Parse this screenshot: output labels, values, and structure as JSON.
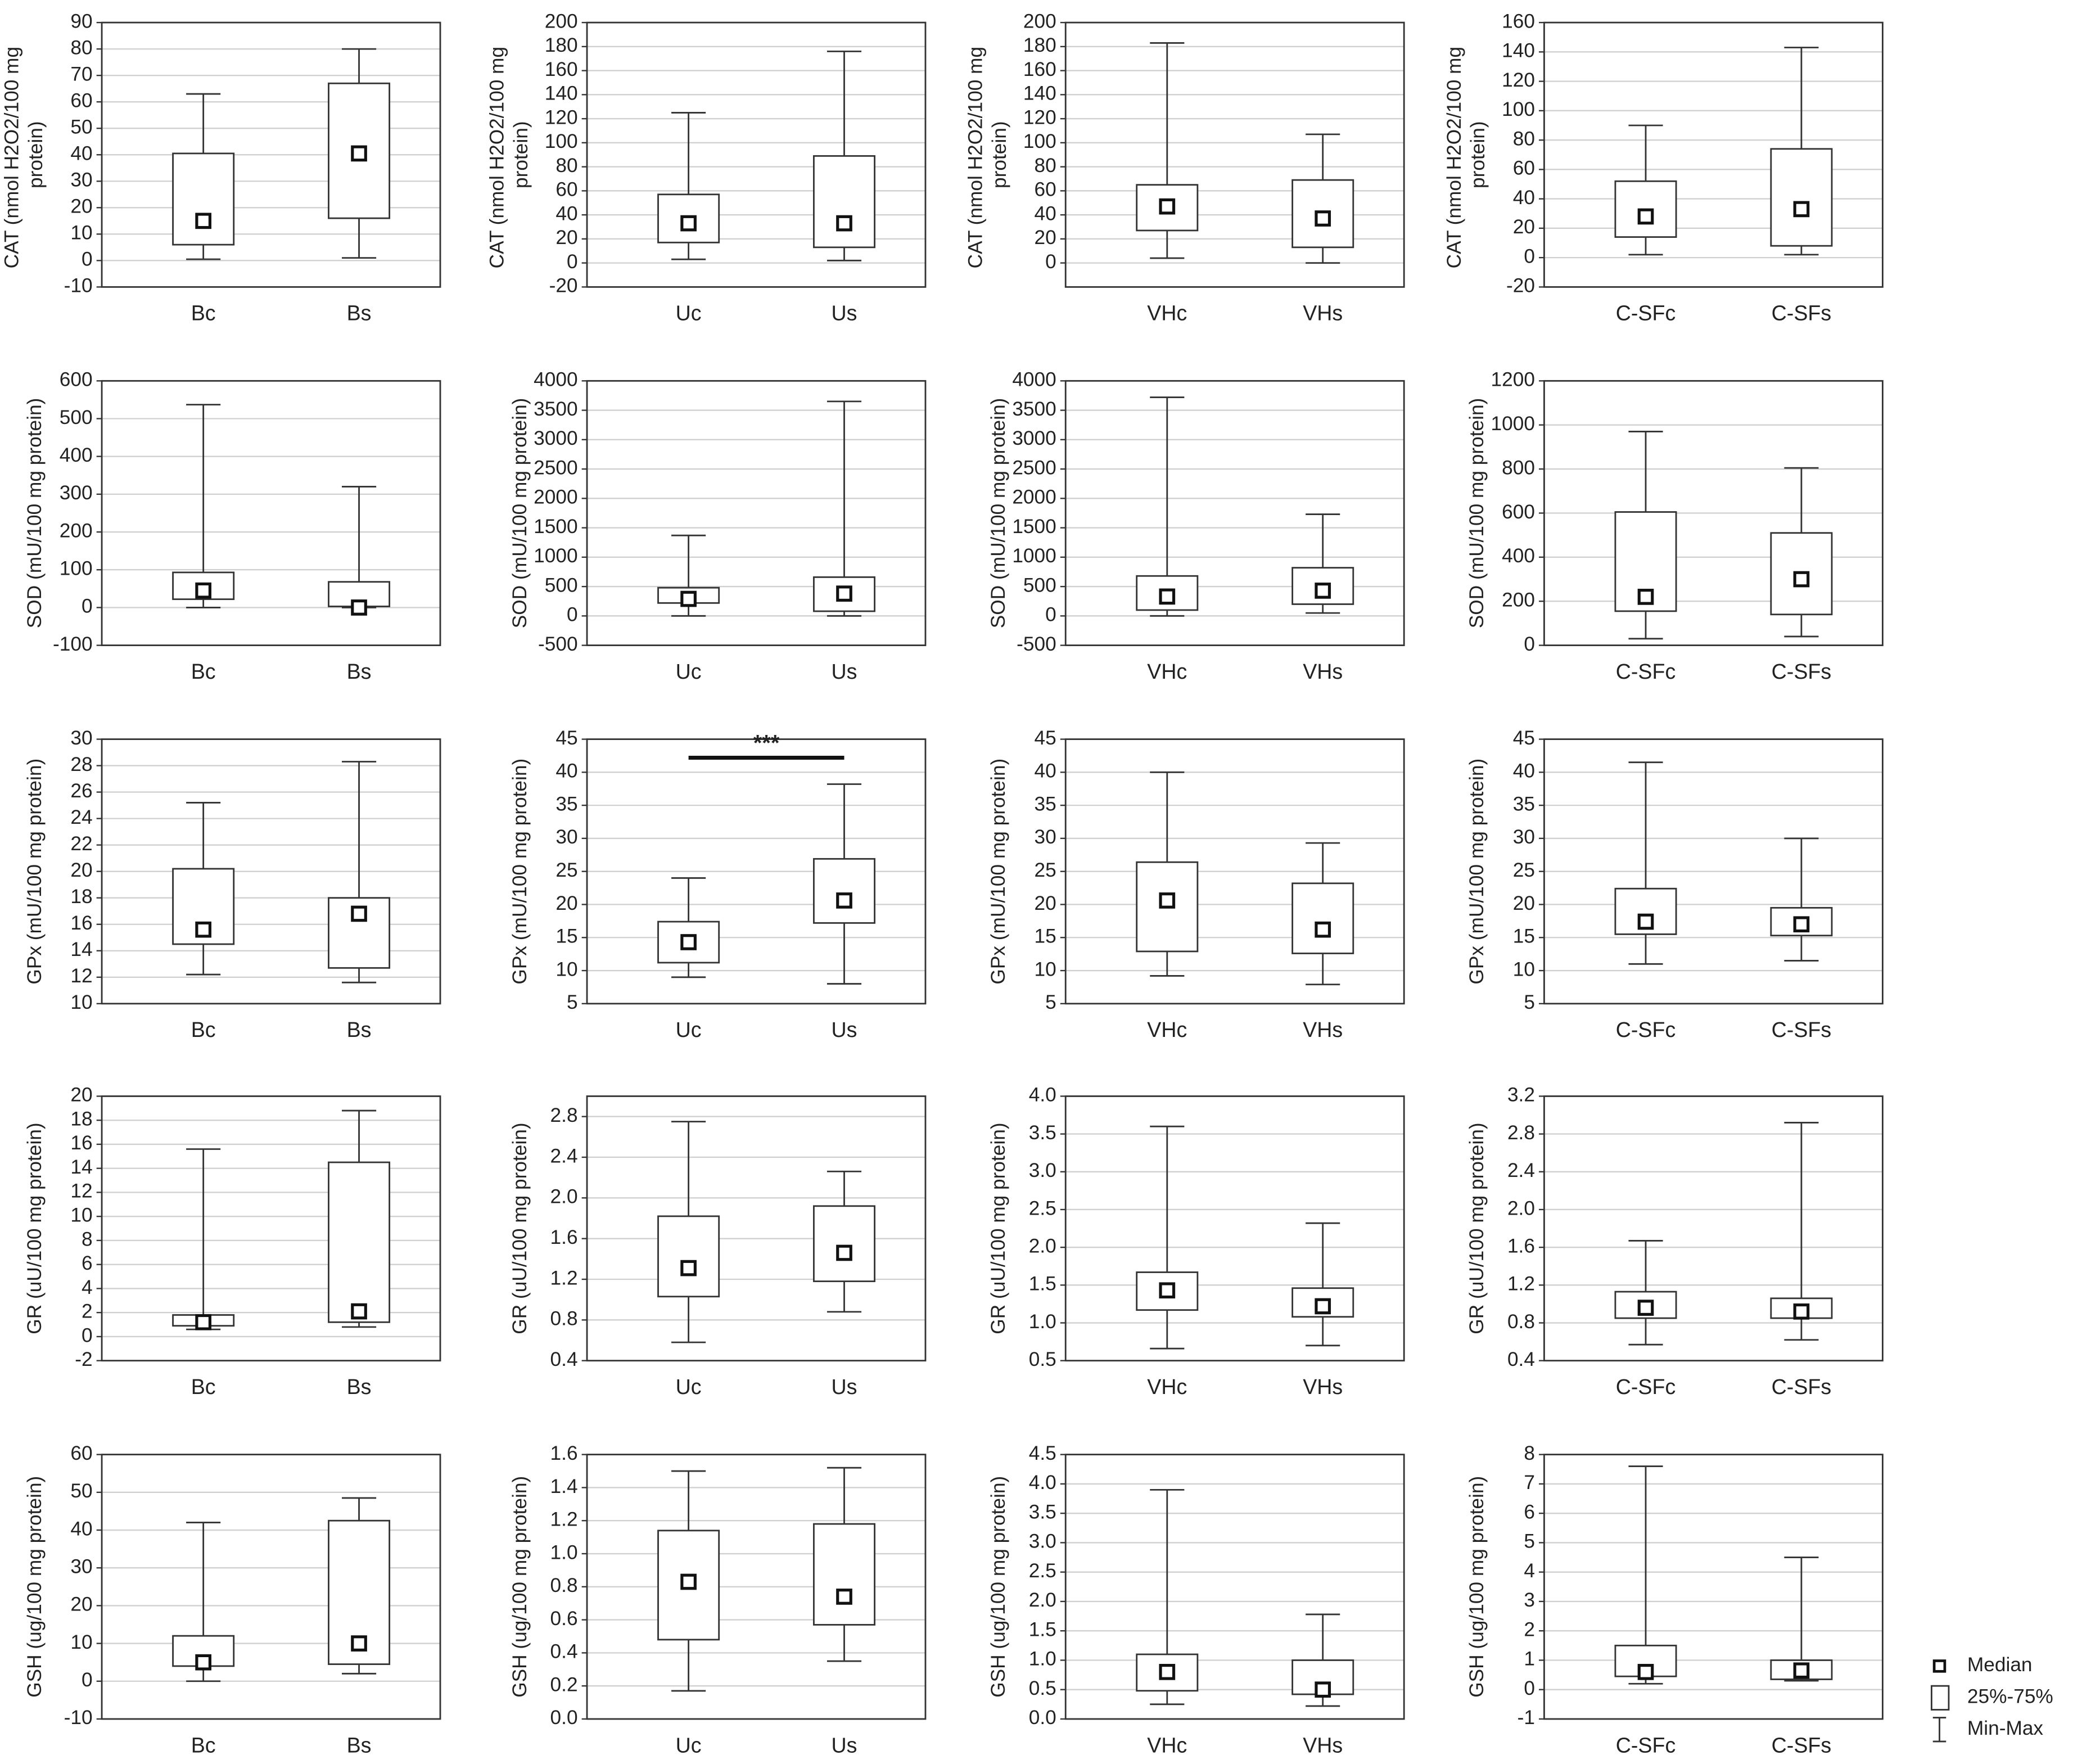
{
  "chart_data": [
    {
      "type": "box",
      "ylabel": "CAT (nmol H2O2/100 mg protein)",
      "categories": [
        "Bc",
        "Bs"
      ],
      "min": [
        0.5,
        1
      ],
      "q1": [
        6,
        16
      ],
      "median": [
        15,
        40.5
      ],
      "q3": [
        40.5,
        67
      ],
      "max": [
        63,
        80
      ],
      "ylim": [
        -10,
        90
      ],
      "yticks": [
        -10,
        0,
        10,
        20,
        30,
        40,
        50,
        60,
        70,
        80,
        90
      ],
      "grid": true
    },
    {
      "type": "box",
      "ylabel": "CAT (nmol H2O2/100 mg protein)",
      "categories": [
        "Uc",
        "Us"
      ],
      "min": [
        3,
        2
      ],
      "q1": [
        17,
        13
      ],
      "median": [
        33,
        33
      ],
      "q3": [
        57,
        89
      ],
      "max": [
        125,
        176
      ],
      "ylim": [
        -20,
        200
      ],
      "yticks": [
        -20,
        0,
        20,
        40,
        60,
        80,
        100,
        120,
        140,
        160,
        180,
        200
      ],
      "grid": true
    },
    {
      "type": "box",
      "ylabel": "CAT (nmol H2O2/100 mg protein)",
      "categories": [
        "VHc",
        "VHs"
      ],
      "min": [
        4,
        0
      ],
      "q1": [
        27,
        13
      ],
      "median": [
        47,
        37
      ],
      "q3": [
        65,
        69
      ],
      "max": [
        183,
        107
      ],
      "ylim": [
        -20,
        200
      ],
      "yticks": [
        0,
        20,
        40,
        60,
        80,
        100,
        120,
        140,
        160,
        180,
        200
      ],
      "grid": true
    },
    {
      "type": "box",
      "ylabel": "CAT (nmol H2O2/100 mg protein)",
      "categories": [
        "C-SFc",
        "C-SFs"
      ],
      "min": [
        2,
        2
      ],
      "q1": [
        14,
        8
      ],
      "median": [
        28,
        33
      ],
      "q3": [
        52,
        74
      ],
      "max": [
        90,
        143
      ],
      "ylim": [
        -20,
        160
      ],
      "yticks": [
        -20,
        0,
        20,
        40,
        60,
        80,
        100,
        120,
        140,
        160
      ],
      "grid": true
    },
    {
      "type": "box",
      "ylabel": "SOD (mU/100 mg protein)",
      "categories": [
        "Bc",
        "Bs"
      ],
      "min": [
        0,
        0
      ],
      "q1": [
        22,
        3
      ],
      "median": [
        45,
        0
      ],
      "q3": [
        93,
        68
      ],
      "max": [
        537,
        320
      ],
      "ylim": [
        -100,
        600
      ],
      "yticks": [
        -100,
        0,
        100,
        200,
        300,
        400,
        500,
        600
      ],
      "grid": true
    },
    {
      "type": "box",
      "ylabel": "SOD (mU/100 mg protein)",
      "categories": [
        "Uc",
        "Us"
      ],
      "min": [
        0,
        0
      ],
      "q1": [
        220,
        80
      ],
      "median": [
        290,
        380
      ],
      "q3": [
        480,
        660
      ],
      "max": [
        1370,
        3650
      ],
      "ylim": [
        -500,
        4000
      ],
      "yticks": [
        -500,
        0,
        500,
        1000,
        1500,
        2000,
        2500,
        3000,
        3500,
        4000
      ],
      "grid": true
    },
    {
      "type": "box",
      "ylabel": "SOD (mU/100 mg protein)",
      "categories": [
        "VHc",
        "VHs"
      ],
      "min": [
        0,
        50
      ],
      "q1": [
        100,
        200
      ],
      "median": [
        330,
        430
      ],
      "q3": [
        680,
        820
      ],
      "max": [
        3720,
        1730
      ],
      "ylim": [
        -500,
        4000
      ],
      "yticks": [
        -500,
        0,
        500,
        1000,
        1500,
        2000,
        2500,
        3000,
        3500,
        4000
      ],
      "grid": true
    },
    {
      "type": "box",
      "ylabel": "SOD (mU/100 mg protein)",
      "categories": [
        "C-SFc",
        "C-SFs"
      ],
      "min": [
        30,
        40
      ],
      "q1": [
        155,
        140
      ],
      "median": [
        220,
        300
      ],
      "q3": [
        605,
        510
      ],
      "max": [
        970,
        805
      ],
      "ylim": [
        0,
        1200
      ],
      "yticks": [
        0,
        200,
        400,
        600,
        800,
        1000,
        1200
      ],
      "grid": true
    },
    {
      "type": "box",
      "ylabel": "GPx (mU/100 mg protein)",
      "categories": [
        "Bc",
        "Bs"
      ],
      "min": [
        12.2,
        11.6
      ],
      "q1": [
        14.5,
        12.7
      ],
      "median": [
        15.6,
        16.8
      ],
      "q3": [
        20.2,
        18
      ],
      "max": [
        25.2,
        28.3
      ],
      "ylim": [
        10,
        30
      ],
      "yticks": [
        10,
        12,
        14,
        16,
        18,
        20,
        22,
        24,
        26,
        28,
        30
      ],
      "grid": true
    },
    {
      "type": "box",
      "ylabel": "GPx (mU/100 mg protein)",
      "categories": [
        "Uc",
        "Us"
      ],
      "min": [
        9,
        8
      ],
      "q1": [
        11.2,
        17.2
      ],
      "median": [
        14.3,
        20.6
      ],
      "q3": [
        17.4,
        26.9
      ],
      "max": [
        24,
        38.2
      ],
      "ylim": [
        5,
        45
      ],
      "yticks": [
        5,
        10,
        15,
        20,
        25,
        30,
        35,
        40,
        45
      ],
      "grid": true,
      "annotation": "***"
    },
    {
      "type": "box",
      "ylabel": "GPx (mU/100 mg protein)",
      "categories": [
        "VHc",
        "VHs"
      ],
      "min": [
        9.2,
        7.9
      ],
      "q1": [
        12.9,
        12.6
      ],
      "median": [
        20.6,
        16.2
      ],
      "q3": [
        26.4,
        23.2
      ],
      "max": [
        40,
        29.3
      ],
      "ylim": [
        5,
        45
      ],
      "yticks": [
        5,
        10,
        15,
        20,
        25,
        30,
        35,
        40,
        45
      ],
      "grid": true
    },
    {
      "type": "box",
      "ylabel": "GPx (mU/100 mg protein)",
      "categories": [
        "C-SFc",
        "C-SFs"
      ],
      "min": [
        11,
        11.5
      ],
      "q1": [
        15.5,
        15.3
      ],
      "median": [
        17.4,
        17
      ],
      "q3": [
        22.4,
        19.5
      ],
      "max": [
        41.5,
        30
      ],
      "ylim": [
        5,
        45
      ],
      "yticks": [
        5,
        10,
        15,
        20,
        25,
        30,
        35,
        40,
        45
      ],
      "grid": true
    },
    {
      "type": "box",
      "ylabel": "GR (uU/100 mg protein)",
      "categories": [
        "Bc",
        "Bs"
      ],
      "min": [
        0.6,
        0.8
      ],
      "q1": [
        0.9,
        1.2
      ],
      "median": [
        1.2,
        2.1
      ],
      "q3": [
        1.8,
        14.5
      ],
      "max": [
        15.6,
        18.8
      ],
      "ylim": [
        -2,
        20
      ],
      "yticks": [
        -2,
        0,
        2,
        4,
        6,
        8,
        10,
        12,
        14,
        16,
        18,
        20
      ],
      "grid": true
    },
    {
      "type": "box",
      "ylabel": "GR (uU/100 mg protein)",
      "categories": [
        "Uc",
        "Us"
      ],
      "min": [
        0.58,
        0.88
      ],
      "q1": [
        1.03,
        1.18
      ],
      "median": [
        1.31,
        1.46
      ],
      "q3": [
        1.82,
        1.92
      ],
      "max": [
        2.75,
        2.26
      ],
      "ylim": [
        0.4,
        3.0
      ],
      "yticks": [
        0.4,
        0.8,
        1.2,
        1.6,
        {
          "value": 2,
          "label": "2.0"
        },
        2.4,
        2.8
      ],
      "grid": true
    },
    {
      "type": "box",
      "ylabel": "GR (uU/100 mg protein)",
      "categories": [
        "VHc",
        "VHs"
      ],
      "min": [
        0.66,
        0.7
      ],
      "q1": [
        1.17,
        1.08
      ],
      "median": [
        1.43,
        1.22
      ],
      "q3": [
        1.67,
        1.46
      ],
      "max": [
        3.6,
        2.32
      ],
      "ylim": [
        0.5,
        4.0
      ],
      "yticks": [
        0.5,
        {
          "value": 1,
          "label": "1.0"
        },
        1.5,
        {
          "value": 2,
          "label": "2.0"
        },
        2.5,
        {
          "value": 3,
          "label": "3.0"
        },
        3.5,
        {
          "value": 4,
          "label": "4.0"
        }
      ],
      "grid": true
    },
    {
      "type": "box",
      "ylabel": "GR (uU/100 mg protein)",
      "categories": [
        "C-SFc",
        "C-SFs"
      ],
      "min": [
        0.57,
        0.62
      ],
      "q1": [
        0.85,
        0.85
      ],
      "median": [
        0.96,
        0.92
      ],
      "q3": [
        1.13,
        1.06
      ],
      "max": [
        1.67,
        2.92
      ],
      "ylim": [
        0.4,
        3.2
      ],
      "yticks": [
        0.4,
        0.8,
        1.2,
        1.6,
        {
          "value": 2,
          "label": "2.0"
        },
        2.4,
        2.8,
        3.2
      ],
      "grid": true
    },
    {
      "type": "box",
      "ylabel": "GSH (ug/100 mg protein)",
      "categories": [
        "Bc",
        "Bs"
      ],
      "min": [
        0,
        2
      ],
      "q1": [
        4,
        4.5
      ],
      "median": [
        5,
        10
      ],
      "q3": [
        12,
        42.5
      ],
      "max": [
        42,
        48.5
      ],
      "ylim": [
        -10,
        60
      ],
      "yticks": [
        -10,
        0,
        10,
        20,
        30,
        40,
        50,
        60
      ],
      "grid": true
    },
    {
      "type": "box",
      "ylabel": "GSH (ug/100 mg protein)",
      "categories": [
        "Uc",
        "Us"
      ],
      "min": [
        0.17,
        0.35
      ],
      "q1": [
        0.48,
        0.57
      ],
      "median": [
        0.83,
        0.74
      ],
      "q3": [
        1.14,
        1.18
      ],
      "max": [
        1.5,
        1.52
      ],
      "ylim": [
        0,
        1.6
      ],
      "yticks": [
        {
          "value": 0,
          "label": "0.0"
        },
        0.2,
        0.4,
        0.6,
        0.8,
        {
          "value": 1,
          "label": "1.0"
        },
        1.2,
        1.4,
        1.6
      ],
      "grid": true
    },
    {
      "type": "box",
      "ylabel": "GSH (ug/100 mg protein)",
      "categories": [
        "VHc",
        "VHs"
      ],
      "min": [
        0.25,
        0.22
      ],
      "q1": [
        0.48,
        0.42
      ],
      "median": [
        0.8,
        0.5
      ],
      "q3": [
        1.1,
        1
      ],
      "max": [
        3.9,
        1.78
      ],
      "ylim": [
        0,
        4.5
      ],
      "yticks": [
        {
          "value": 0,
          "label": "0.0"
        },
        0.5,
        {
          "value": 1,
          "label": "1.0"
        },
        1.5,
        {
          "value": 2,
          "label": "2.0"
        },
        2.5,
        {
          "value": 3,
          "label": "3.0"
        },
        3.5,
        {
          "value": 4,
          "label": "4.0"
        },
        4.5
      ],
      "grid": true
    },
    {
      "type": "box",
      "ylabel": "GSH (ug/100 mg protein)",
      "categories": [
        "C-SFc",
        "C-SFs"
      ],
      "min": [
        0.2,
        0.3
      ],
      "q1": [
        0.45,
        0.35
      ],
      "median": [
        0.6,
        0.65
      ],
      "q3": [
        1.5,
        1
      ],
      "max": [
        7.6,
        4.5
      ],
      "ylim": [
        -1,
        8
      ],
      "yticks": [
        -1,
        0,
        1,
        2,
        3,
        4,
        5,
        6,
        7,
        8
      ],
      "grid": true
    }
  ],
  "legend": [
    "Median",
    "25%-75%",
    "Min-Max"
  ]
}
